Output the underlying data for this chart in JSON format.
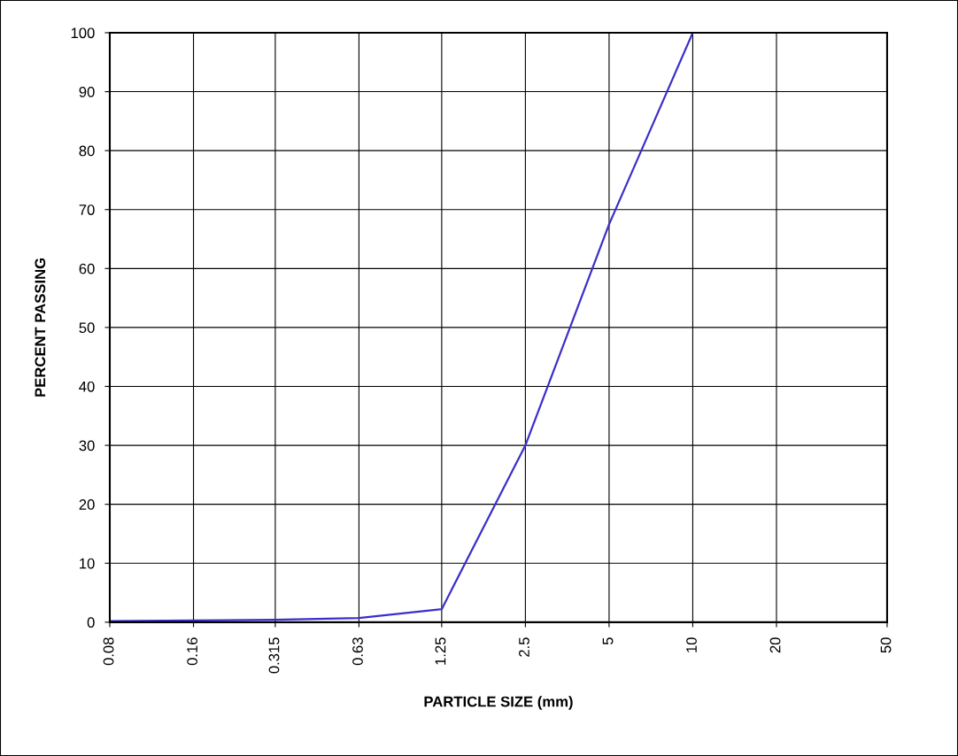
{
  "chart_data": {
    "type": "line",
    "xlabel": "PARTICLE SIZE (mm)",
    "ylabel": "PERCENT PASSING",
    "x": [
      0.08,
      0.16,
      0.315,
      0.63,
      1.25,
      2.5,
      5,
      10
    ],
    "series": [
      {
        "color": "#3b2fc9",
        "values": [
          0.2,
          0.3,
          0.4,
          0.7,
          2.2,
          30,
          67.5,
          100
        ]
      }
    ],
    "log": "x",
    "xlim": [
      0.08,
      50
    ],
    "xticks": [
      0.08,
      0.16,
      0.315,
      0.63,
      1.25,
      2.5,
      5,
      10,
      20,
      50
    ],
    "ylim": [
      0,
      100
    ],
    "yticks": [
      0,
      10,
      20,
      30,
      40,
      50,
      60,
      70,
      80,
      90,
      100
    ],
    "grid": true,
    "marker": "none",
    "line_style": "solid"
  }
}
